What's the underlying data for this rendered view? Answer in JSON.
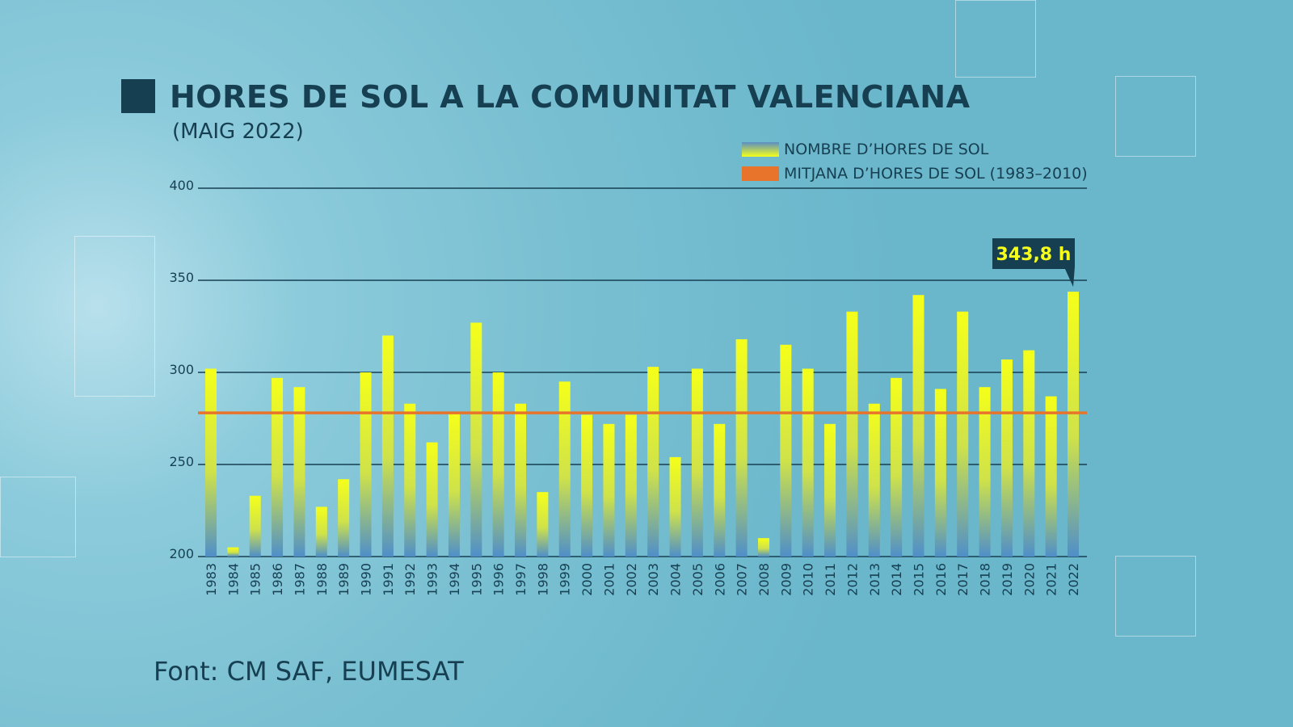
{
  "title": "HORES DE SOL A LA COMUNITAT VALENCIANA",
  "subtitle": "(MAIG 2022)",
  "source": "Font: CM SAF, EUMESAT",
  "colors": {
    "bar_top": "#f5ff1a",
    "bar_bottom": "#4f8fc9",
    "mean_line": "#e8732a",
    "text": "#173f52"
  },
  "chart_data": {
    "type": "bar",
    "title": "HORES DE SOL A LA COMUNITAT VALENCIANA",
    "subtitle": "(MAIG 2022)",
    "categories": [
      "1983",
      "1984",
      "1985",
      "1986",
      "1987",
      "1988",
      "1989",
      "1990",
      "1991",
      "1992",
      "1993",
      "1994",
      "1995",
      "1996",
      "1997",
      "1998",
      "1999",
      "2000",
      "2001",
      "2002",
      "2003",
      "2004",
      "2005",
      "2006",
      "2007",
      "2008",
      "2009",
      "2010",
      "2011",
      "2012",
      "2013",
      "2014",
      "2015",
      "2016",
      "2017",
      "2018",
      "2019",
      "2020",
      "2021",
      "2022"
    ],
    "series": [
      {
        "name": "NOMBRE D’HORES DE SOL",
        "values": [
          302,
          205,
          233,
          297,
          292,
          227,
          242,
          300,
          320,
          283,
          262,
          278,
          327,
          300,
          283,
          235,
          295,
          277,
          272,
          277,
          303,
          254,
          302,
          272,
          318,
          210,
          315,
          302,
          272,
          333,
          283,
          297,
          342,
          291,
          333,
          292,
          307,
          312,
          287,
          343.8
        ]
      }
    ],
    "reference_line": {
      "name": "MITJANA D’HORES DE SOL (1983–2010)",
      "value": 278
    },
    "annotation": {
      "category": "2022",
      "text": "343,8 h"
    },
    "ylim": [
      200,
      400
    ],
    "yticks": [
      "200",
      "250",
      "300",
      "350",
      "400"
    ],
    "grid": true,
    "legend": "top-right"
  }
}
